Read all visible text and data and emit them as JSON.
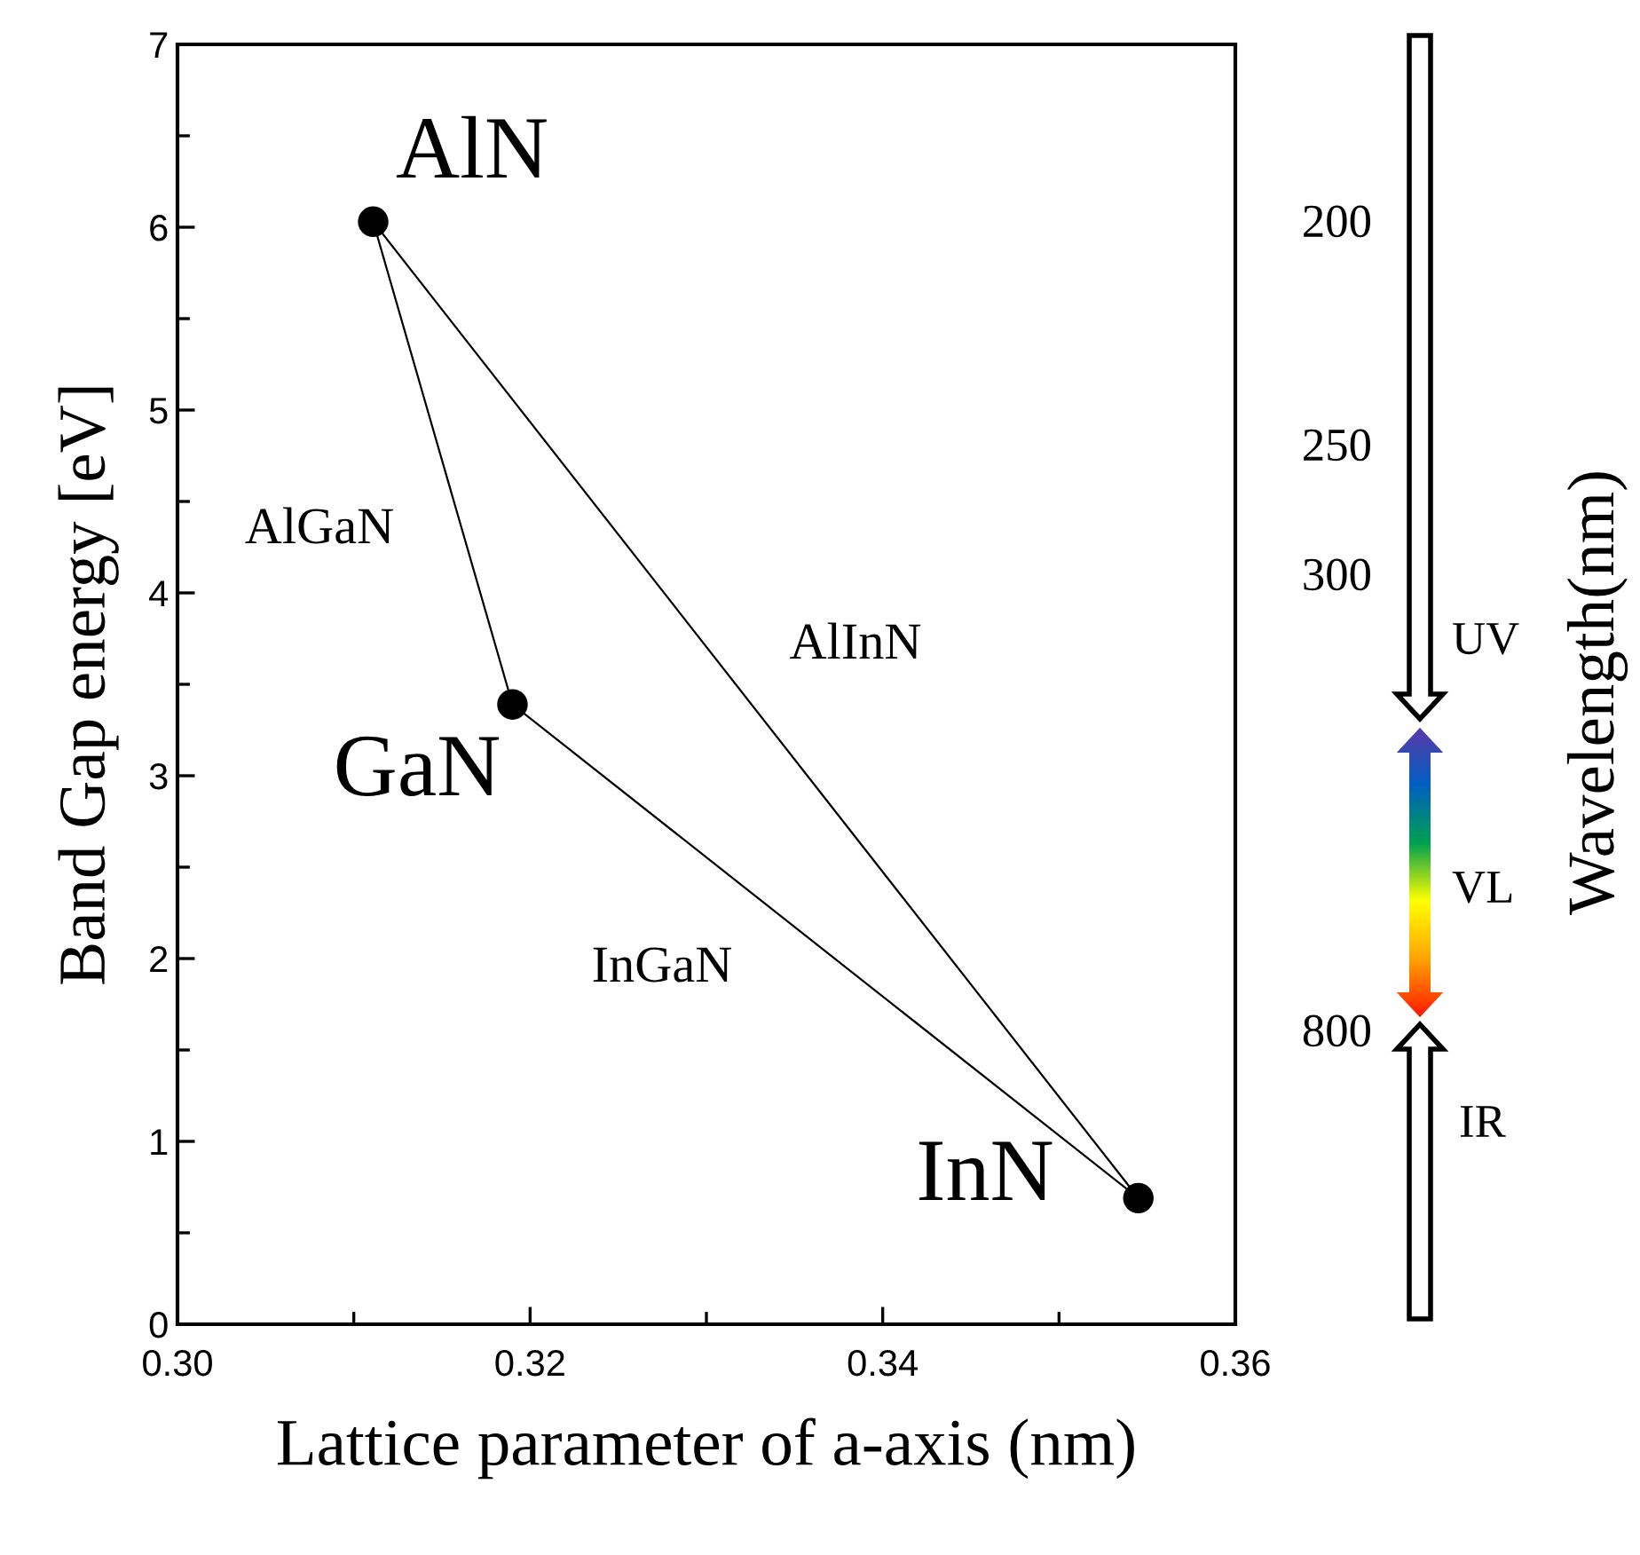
{
  "chart_data": {
    "type": "scatter",
    "xlabel": "Lattice parameter of a-axis (nm)",
    "ylabel": "Band Gap energy [eV]",
    "y2label": "Wavelength(nm)",
    "xlim": [
      0.3,
      0.36
    ],
    "xticks": [
      {
        "value": 0.3,
        "label": "0.30"
      },
      {
        "value": 0.32,
        "label": "0.32"
      },
      {
        "value": 0.34,
        "label": "0.34"
      },
      {
        "value": 0.36,
        "label": "0.36"
      }
    ],
    "ylim": [
      0,
      7
    ],
    "yticks": [
      0,
      1,
      2,
      3,
      4,
      5,
      6,
      7
    ],
    "grid": false,
    "series": [
      {
        "type": "line",
        "color": "#000000",
        "marker": "none",
        "x": [
          0.3111,
          0.319
        ],
        "values": [
          6.03,
          3.39
        ]
      },
      {
        "type": "line",
        "color": "#000000",
        "marker": "none",
        "x": [
          0.319,
          0.3545
        ],
        "values": [
          3.39,
          0.69
        ]
      },
      {
        "type": "line",
        "color": "#000000",
        "marker": "none",
        "x": [
          0.3111,
          0.3545
        ],
        "values": [
          6.03,
          0.69
        ]
      },
      {
        "color": "#000000",
        "marker": "circle",
        "x": [
          0.3111,
          0.319,
          0.3545
        ],
        "values": [
          6.03,
          3.39,
          0.69
        ]
      }
    ],
    "annotations": [
      "AlN",
      "GaN",
      "InN",
      "AlGaN",
      "AlInN",
      "InGaN",
      "200",
      "250",
      "300",
      "800",
      "UV",
      "VL",
      "IR"
    ]
  }
}
